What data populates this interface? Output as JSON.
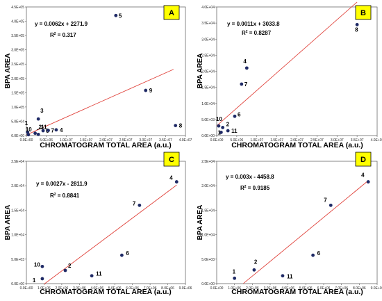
{
  "chart_data": [
    {
      "type": "scatter",
      "panel": "A",
      "xlabel": "CHROMATOGRAM TOTAL AREA (a.u.)",
      "ylabel": "BPA AREA",
      "xlim": [
        0,
        40000000
      ],
      "ylim": [
        0,
        450000
      ],
      "xticks": [
        "0.0E+00",
        "5.0E+06",
        "1.0E+07",
        "1.5E+07",
        "2.0E+07",
        "2.5E+07",
        "3.0E+07",
        "3.5E+07",
        "4.0E+07"
      ],
      "yticks": [
        "0.0E+00",
        "5.0E+04",
        "1.0E+05",
        "1.5E+05",
        "2.0E+05",
        "2.5E+05",
        "3.0E+05",
        "3.5E+05",
        "4.0E+05",
        "4.5E+05"
      ],
      "equation": "y = 0.0062x + 2271.9",
      "r2": "R",
      "r2_value": " = 0.317",
      "points": [
        {
          "label": "1",
          "x": 300000,
          "y": 12000
        },
        {
          "label": "10",
          "x": 500000,
          "y": 3000
        },
        {
          "label": "3",
          "x": 3000000,
          "y": 58000
        },
        {
          "label": "2",
          "x": 2200000,
          "y": 8000
        },
        {
          "label": "6",
          "x": 4200000,
          "y": 17000
        },
        {
          "label": "7",
          "x": 5500000,
          "y": 18000
        },
        {
          "label": "4",
          "x": 7500000,
          "y": 20000
        },
        {
          "label": "11",
          "x": 3000000,
          "y": 4000
        },
        {
          "label": "5",
          "x": 22500000,
          "y": 420000
        },
        {
          "label": "9",
          "x": 30000000,
          "y": 158000
        },
        {
          "label": "8",
          "x": 37500000,
          "y": 35000
        }
      ]
    },
    {
      "type": "scatter",
      "panel": "B",
      "xlabel": "CHROMATOGRAM TOTAL AREA (a.u.)",
      "ylabel": "BPA AREA",
      "xlim": [
        0,
        40000000
      ],
      "ylim": [
        0,
        40000
      ],
      "xticks": [
        "0.0E+00",
        "5.0E+06",
        "1.0E+07",
        "1.5E+07",
        "2.0E+07",
        "2.5E+07",
        "3.0E+07",
        "3.5E+07",
        "4.0E+07"
      ],
      "yticks": [
        "0.0E+00",
        "5.0E+03",
        "1.0E+04",
        "1.5E+04",
        "2.0E+04",
        "2.5E+04",
        "3.0E+04",
        "3.5E+04",
        "4.0E+04"
      ],
      "equation": "y = 0.0011x + 3033.8",
      "r2": "R",
      "r2_value": " = 0.8287",
      "points": [
        {
          "label": "10",
          "x": 500000,
          "y": 3000
        },
        {
          "label": "2",
          "x": 1500000,
          "y": 2500
        },
        {
          "label": "1",
          "x": 1100000,
          "y": 1000
        },
        {
          "label": "11",
          "x": 2800000,
          "y": 1500
        },
        {
          "label": "6",
          "x": 4500000,
          "y": 6000
        },
        {
          "label": "7",
          "x": 6200000,
          "y": 16000
        },
        {
          "label": "4",
          "x": 7500000,
          "y": 21000
        },
        {
          "label": "8",
          "x": 35000000,
          "y": 34500
        }
      ]
    },
    {
      "type": "scatter",
      "panel": "C",
      "xlabel": "CHROMATOGRAM TOTAL AREA (a.u.)",
      "ylabel": "BPA AREA",
      "xlim": [
        0,
        9000000
      ],
      "ylim": [
        0,
        25000
      ],
      "xticks": [
        "0.0E+00",
        "1.0E+06",
        "2.0E+06",
        "3.0E+06",
        "4.0E+06",
        "5.0E+06",
        "6.0E+06",
        "7.0E+06",
        "8.0E+06",
        "9.0E+06"
      ],
      "yticks": [
        "0.0E+00",
        "5.0E+03",
        "1.0E+04",
        "1.5E+04",
        "2.0E+04",
        "2.5E+04"
      ],
      "equation": "y = 0.0027x - 2811.9",
      "r2": "R",
      "r2_value": " = 0.8841",
      "points": [
        {
          "label": "10",
          "x": 900000,
          "y": 3500
        },
        {
          "label": "1",
          "x": 900000,
          "y": 1000
        },
        {
          "label": "2",
          "x": 2200000,
          "y": 2700
        },
        {
          "label": "11",
          "x": 3700000,
          "y": 1600
        },
        {
          "label": "6",
          "x": 5400000,
          "y": 5800
        },
        {
          "label": "7",
          "x": 6400000,
          "y": 16000
        },
        {
          "label": "4",
          "x": 8500000,
          "y": 20800
        }
      ]
    },
    {
      "type": "scatter",
      "panel": "D",
      "xlabel": "CHROMATOGRAM TOTAL AREA (a.u.)",
      "ylabel": "BPA AREA",
      "xlim": [
        0,
        9000000
      ],
      "ylim": [
        0,
        25000
      ],
      "xticks": [
        "0.0E+00",
        "1.0E+06",
        "2.0E+06",
        "3.0E+06",
        "4.0E+06",
        "5.0E+06",
        "6.0E+06",
        "7.0E+06",
        "8.0E+06",
        "9.0E+06"
      ],
      "yticks": [
        "0.0E+00",
        "5.0E+03",
        "1.0E+04",
        "1.5E+04",
        "2.0E+04",
        "2.5E+04"
      ],
      "equation": "y = 0.003x - 4458.8",
      "r2": "R",
      "r2_value": " = 0.9185",
      "points": [
        {
          "label": "1",
          "x": 1000000,
          "y": 1100
        },
        {
          "label": "2",
          "x": 2100000,
          "y": 2800
        },
        {
          "label": "11",
          "x": 3700000,
          "y": 1600
        },
        {
          "label": "6",
          "x": 5400000,
          "y": 5800
        },
        {
          "label": "7",
          "x": 6400000,
          "y": 16000
        },
        {
          "label": "4",
          "x": 8500000,
          "y": 20800
        }
      ]
    }
  ]
}
